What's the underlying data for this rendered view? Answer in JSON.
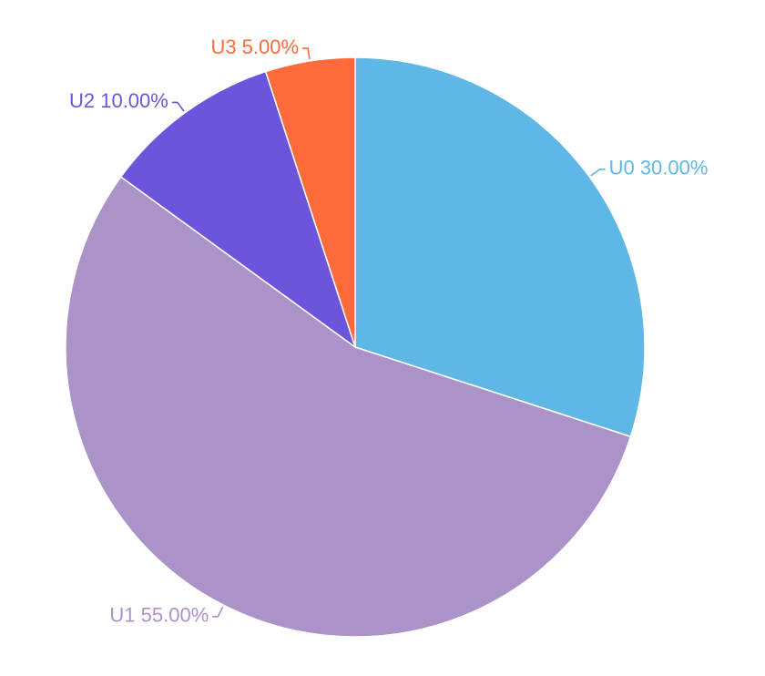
{
  "chart_data": {
    "type": "pie",
    "start_angle_deg": 0,
    "direction": "clockwise",
    "slices": [
      {
        "name": "U0",
        "value": 30.0,
        "label": "U0 30.00%",
        "color": "#5fb7e5"
      },
      {
        "name": "U1",
        "value": 55.0,
        "label": "U1 55.00%",
        "color": "#ab92c8"
      },
      {
        "name": "U2",
        "value": 10.0,
        "label": "U2 10.00%",
        "color": "#6c55da"
      },
      {
        "name": "U3",
        "value": 5.0,
        "label": "U3 5.00%",
        "color": "#fd6b3a"
      }
    ],
    "legend": "none",
    "grid": false
  }
}
